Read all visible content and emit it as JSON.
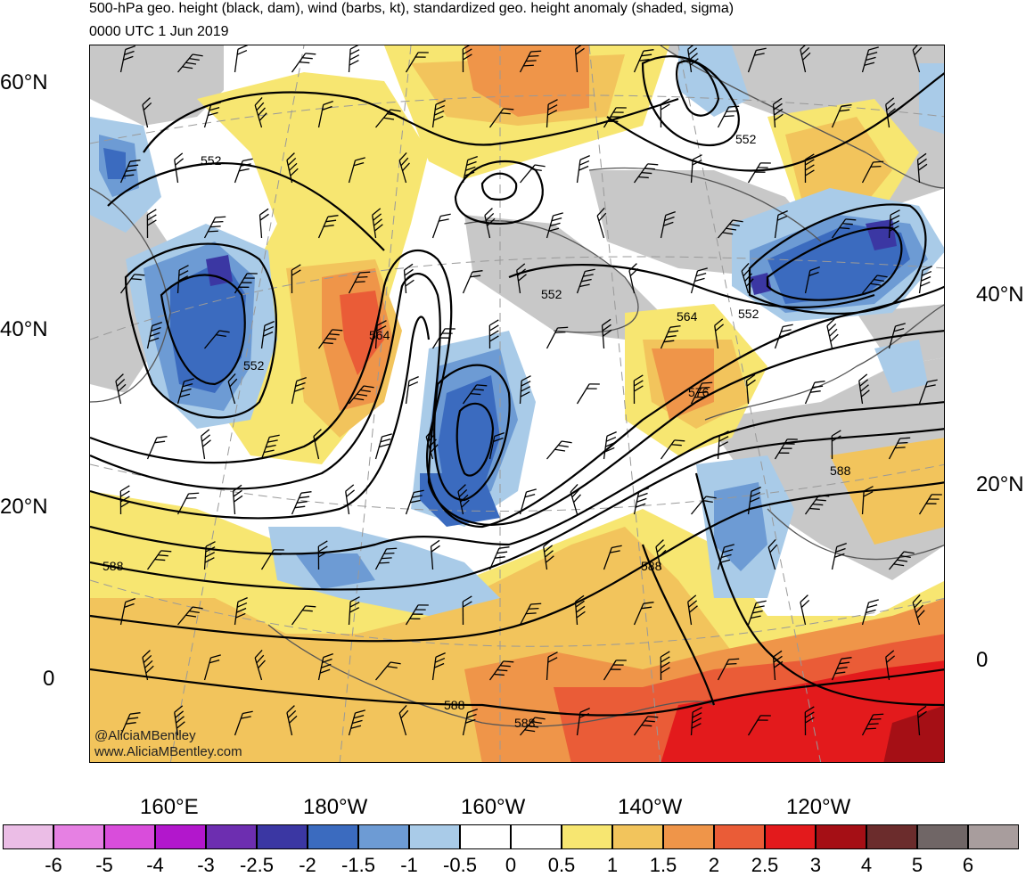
{
  "title": {
    "line1": "500-hPa geo. height (black, dam), wind (barbs, kt), standardized geo. height anomaly (shaded, sigma)",
    "line2": "0000 UTC 1 Jun 2019"
  },
  "left_lat_labels": [
    "60°N",
    "40°N",
    "20°N",
    "0"
  ],
  "right_lat_labels": [
    "40°N",
    "20°N",
    "0"
  ],
  "lon_labels": [
    "160°E",
    "180°W",
    "160°W",
    "140°W",
    "120°W"
  ],
  "contour_labels": [
    "552",
    "552",
    "552",
    "552",
    "564",
    "564",
    "576",
    "588",
    "588",
    "588",
    "588",
    "588"
  ],
  "credits": [
    "@AliciaMBentley",
    "www.AliciaMBentley.com"
  ],
  "colorbar": {
    "colors": [
      "#ebbde6",
      "#e680e3",
      "#d94ddb",
      "#b217cc",
      "#6d2eb0",
      "#3b37a3",
      "#3b6bbf",
      "#6d9bd4",
      "#a9cbe8",
      "#ffffff",
      "#ffffff",
      "#f7e671",
      "#f2c45c",
      "#ef9549",
      "#ea5c37",
      "#e31a1c",
      "#a50f15",
      "#6b2c2c",
      "#706666",
      "#a89d9d"
    ],
    "labels": [
      "-6",
      "-5",
      "-4",
      "-3",
      "-2.5",
      "-2",
      "-1.5",
      "-1",
      "-0.5",
      "0",
      "0.5",
      "1",
      "1.5",
      "2",
      "2.5",
      "3",
      "4",
      "5",
      "6"
    ]
  },
  "anomaly_colors": {
    "light_blue": "#a9cbe8",
    "mid_blue": "#6d9bd4",
    "blue": "#3b6bbf",
    "dark_blue": "#3b37a3",
    "yellow": "#f7e671",
    "light_orange": "#f2c45c",
    "orange": "#ef9549",
    "red_orange": "#ea5c37",
    "red": "#e31a1c",
    "dark_red": "#a50f15",
    "land": "#c8c8c8"
  }
}
